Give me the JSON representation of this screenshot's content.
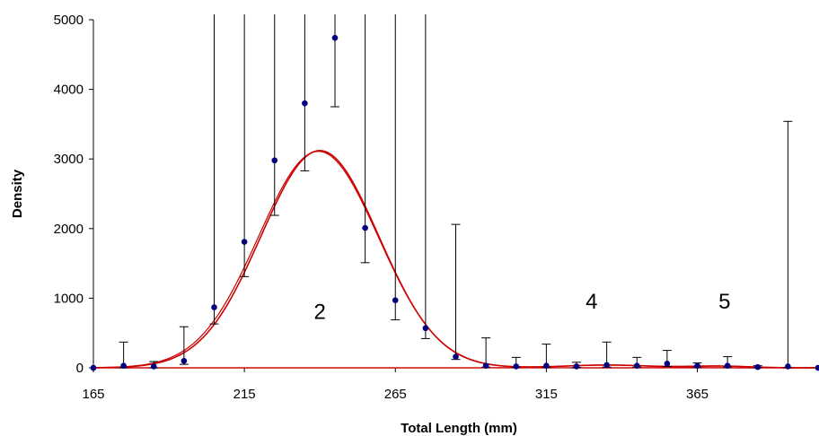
{
  "chart_data": {
    "type": "scatter",
    "xlabel": "Total Length (mm)",
    "ylabel": "Density",
    "xlim": [
      165,
      405
    ],
    "ylim": [
      0,
      5000
    ],
    "x_ticks": [
      "165",
      "215",
      "265",
      "315",
      "365"
    ],
    "y_ticks": [
      "0",
      "1000",
      "2000",
      "3000",
      "4000",
      "5000"
    ],
    "grid": false,
    "legend": "none",
    "annotations": [
      {
        "text": "2",
        "x": 240,
        "y": 700
      },
      {
        "text": "4",
        "x": 330,
        "y": 850
      },
      {
        "text": "5",
        "x": 374,
        "y": 850
      }
    ],
    "series": [
      {
        "kind": "points_with_error_bars",
        "color": "#000080",
        "points": [
          {
            "x": 165,
            "y": 0,
            "lo": 0,
            "hi": 0
          },
          {
            "x": 175,
            "y": 30,
            "lo": 0,
            "hi": 370
          },
          {
            "x": 185,
            "y": 20,
            "lo": 0,
            "hi": 90
          },
          {
            "x": 195,
            "y": 100,
            "lo": 50,
            "hi": 590
          },
          {
            "x": 205,
            "y": 870,
            "lo": 630,
            "hi": 5000
          },
          {
            "x": 215,
            "y": 1810,
            "lo": 1310,
            "hi": 5000
          },
          {
            "x": 225,
            "y": 2980,
            "lo": 2190,
            "hi": 5000
          },
          {
            "x": 235,
            "y": 3800,
            "lo": 2830,
            "hi": 5000
          },
          {
            "x": 245,
            "y": 4740,
            "lo": 3750,
            "hi": 5000
          },
          {
            "x": 255,
            "y": 2010,
            "lo": 1510,
            "hi": 5000
          },
          {
            "x": 265,
            "y": 970,
            "lo": 690,
            "hi": 5000
          },
          {
            "x": 275,
            "y": 570,
            "lo": 420,
            "hi": 5000
          },
          {
            "x": 285,
            "y": 160,
            "lo": 120,
            "hi": 2060
          },
          {
            "x": 295,
            "y": 30,
            "lo": 10,
            "hi": 430
          },
          {
            "x": 305,
            "y": 20,
            "lo": 5,
            "hi": 150
          },
          {
            "x": 315,
            "y": 30,
            "lo": 5,
            "hi": 340
          },
          {
            "x": 325,
            "y": 20,
            "lo": 5,
            "hi": 80
          },
          {
            "x": 335,
            "y": 40,
            "lo": 10,
            "hi": 370
          },
          {
            "x": 345,
            "y": 30,
            "lo": 10,
            "hi": 150
          },
          {
            "x": 355,
            "y": 60,
            "lo": 20,
            "hi": 250
          },
          {
            "x": 365,
            "y": 30,
            "lo": 10,
            "hi": 70
          },
          {
            "x": 375,
            "y": 30,
            "lo": 10,
            "hi": 160
          },
          {
            "x": 385,
            "y": 10,
            "lo": 0,
            "hi": 30
          },
          {
            "x": 395,
            "y": 20,
            "lo": 0,
            "hi": 3540
          },
          {
            "x": 405,
            "y": 0,
            "lo": 0,
            "hi": 0
          }
        ]
      },
      {
        "kind": "fitted_curve_total",
        "color": "#cc0000",
        "components": [
          {
            "amp": 3120,
            "mu": 240,
            "sigma": 19.5
          },
          {
            "amp": 40,
            "mu": 335,
            "sigma": 14
          },
          {
            "amp": 25,
            "mu": 372,
            "sigma": 10
          }
        ]
      },
      {
        "kind": "fitted_curve_component",
        "color": "#cc0000",
        "components": [
          {
            "amp": 3110,
            "mu": 239.5,
            "sigma": 19.8
          }
        ]
      },
      {
        "kind": "fitted_curve_component",
        "color": "#cc0000",
        "components": [
          {
            "amp": 40,
            "mu": 335,
            "sigma": 14
          }
        ]
      },
      {
        "kind": "fitted_curve_component",
        "color": "#cc0000",
        "components": [
          {
            "amp": 25,
            "mu": 372,
            "sigma": 10
          }
        ]
      }
    ]
  }
}
